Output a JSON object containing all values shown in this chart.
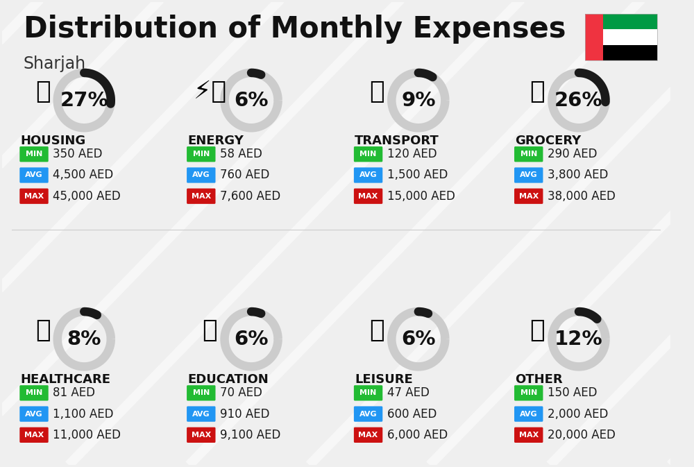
{
  "title": "Distribution of Monthly Expenses",
  "subtitle": "Sharjah",
  "background_color": "#efefef",
  "categories": [
    {
      "name": "HOUSING",
      "pct": 27,
      "min_val": "350 AED",
      "avg_val": "4,500 AED",
      "max_val": "45,000 AED",
      "icon_key": "housing",
      "row": 0,
      "col": 0
    },
    {
      "name": "ENERGY",
      "pct": 6,
      "min_val": "58 AED",
      "avg_val": "760 AED",
      "max_val": "7,600 AED",
      "icon_key": "energy",
      "row": 0,
      "col": 1
    },
    {
      "name": "TRANSPORT",
      "pct": 9,
      "min_val": "120 AED",
      "avg_val": "1,500 AED",
      "max_val": "15,000 AED",
      "icon_key": "transport",
      "row": 0,
      "col": 2
    },
    {
      "name": "GROCERY",
      "pct": 26,
      "min_val": "290 AED",
      "avg_val": "3,800 AED",
      "max_val": "38,000 AED",
      "icon_key": "grocery",
      "row": 0,
      "col": 3
    },
    {
      "name": "HEALTHCARE",
      "pct": 8,
      "min_val": "81 AED",
      "avg_val": "1,100 AED",
      "max_val": "11,000 AED",
      "icon_key": "healthcare",
      "row": 1,
      "col": 0
    },
    {
      "name": "EDUCATION",
      "pct": 6,
      "min_val": "70 AED",
      "avg_val": "910 AED",
      "max_val": "9,100 AED",
      "icon_key": "education",
      "row": 1,
      "col": 1
    },
    {
      "name": "LEISURE",
      "pct": 6,
      "min_val": "47 AED",
      "avg_val": "600 AED",
      "max_val": "6,000 AED",
      "icon_key": "leisure",
      "row": 1,
      "col": 2
    },
    {
      "name": "OTHER",
      "pct": 12,
      "min_val": "150 AED",
      "avg_val": "2,000 AED",
      "max_val": "20,000 AED",
      "icon_key": "other",
      "row": 1,
      "col": 3
    }
  ],
  "min_color": "#22bb33",
  "avg_color": "#2196f3",
  "max_color": "#cc1111",
  "title_fontsize": 30,
  "subtitle_fontsize": 17,
  "category_fontsize": 13,
  "pct_fontsize": 21,
  "val_fontsize": 12,
  "badge_fontsize": 8
}
